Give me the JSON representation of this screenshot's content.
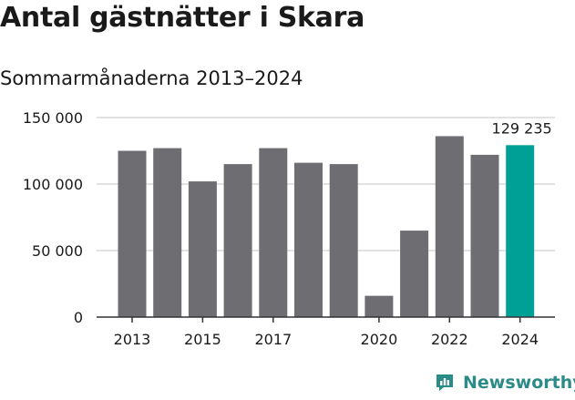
{
  "title": "Antal gästnätter i Skara",
  "subtitle": "Sommarmånaderna 2013–2024",
  "brand": {
    "name": "Newsworthy",
    "icon": "newsworthy-logo-icon"
  },
  "colors": {
    "bar": "#6e6d72",
    "highlight": "#00a096",
    "grid": "#d9d9d9",
    "axis": "#333333",
    "brand": "#2b8c87"
  },
  "chart_data": {
    "type": "bar",
    "categories": [
      "2013",
      "2014",
      "2015",
      "2016",
      "2017",
      "2018",
      "2019",
      "2020",
      "2021",
      "2022",
      "2023",
      "2024"
    ],
    "values": [
      125000,
      127000,
      102000,
      115000,
      127000,
      116000,
      115000,
      16000,
      65000,
      136000,
      122000,
      129235
    ],
    "x_tick_labels": [
      "2013",
      "2015",
      "2017",
      "2020",
      "2022",
      "2024"
    ],
    "y_ticks": [
      0,
      50000,
      100000,
      150000
    ],
    "y_tick_labels": [
      "0",
      "50 000",
      "100 000",
      "150 000"
    ],
    "ylim": [
      0,
      150000
    ],
    "highlight_index": 11,
    "highlight_label": "129 235",
    "xlabel": "",
    "ylabel": "",
    "grid": true
  }
}
